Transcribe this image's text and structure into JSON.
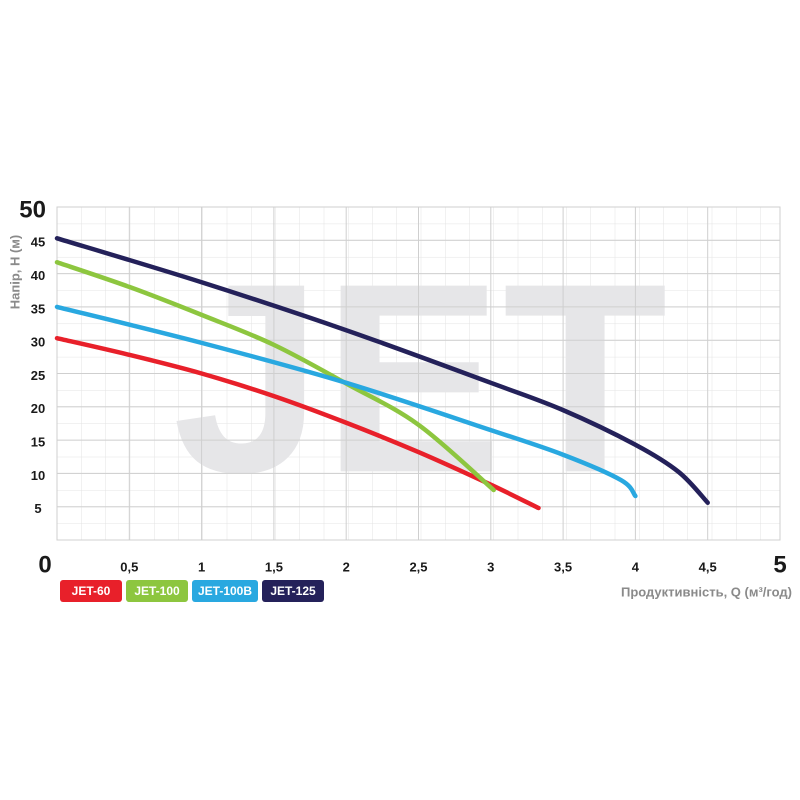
{
  "chart_data": {
    "type": "line",
    "watermark": "JET",
    "y_label": "Напір, Н (м)",
    "x_label": "Продуктивність, Q (м³/год)",
    "xlim": [
      0,
      5
    ],
    "ylim": [
      0,
      50
    ],
    "xticks": [
      0,
      {
        "value": 0.5,
        "label": "0,5"
      },
      1,
      {
        "value": 1.5,
        "label": "1,5"
      },
      2,
      {
        "value": 2.5,
        "label": "2,5"
      },
      3,
      {
        "value": 3.5,
        "label": "3,5"
      },
      4,
      {
        "value": 4.5,
        "label": "4,5"
      },
      5
    ],
    "yticks": [
      5,
      10,
      15,
      20,
      25,
      30,
      35,
      40,
      45,
      50
    ],
    "grid": true,
    "series": [
      {
        "name": "JET-60",
        "color": "#e8202a",
        "x": [
          0,
          0.5,
          1,
          1.5,
          2,
          2.5,
          3,
          3.33
        ],
        "values": [
          30.3,
          27.8,
          25,
          21.6,
          17.6,
          13.2,
          8.3,
          4.8
        ]
      },
      {
        "name": "JET-100",
        "color": "#8dc63f",
        "x": [
          0,
          0.5,
          1,
          1.5,
          2,
          2.5,
          3.02
        ],
        "values": [
          41.7,
          38,
          33.8,
          29.3,
          23.5,
          17.3,
          7.5
        ]
      },
      {
        "name": "JET-100B",
        "color": "#29a8e0",
        "x": [
          0,
          1,
          2,
          3,
          3.5,
          3.9,
          4.0
        ],
        "values": [
          35,
          29.6,
          23.6,
          16.5,
          12.8,
          9,
          6.6
        ]
      },
      {
        "name": "JET-125",
        "color": "#24215a",
        "x": [
          0,
          1,
          2,
          3,
          3.5,
          4,
          4.3,
          4.5
        ],
        "values": [
          45.3,
          38.7,
          31.5,
          23.6,
          19.5,
          14.3,
          10.2,
          5.6
        ]
      }
    ]
  }
}
